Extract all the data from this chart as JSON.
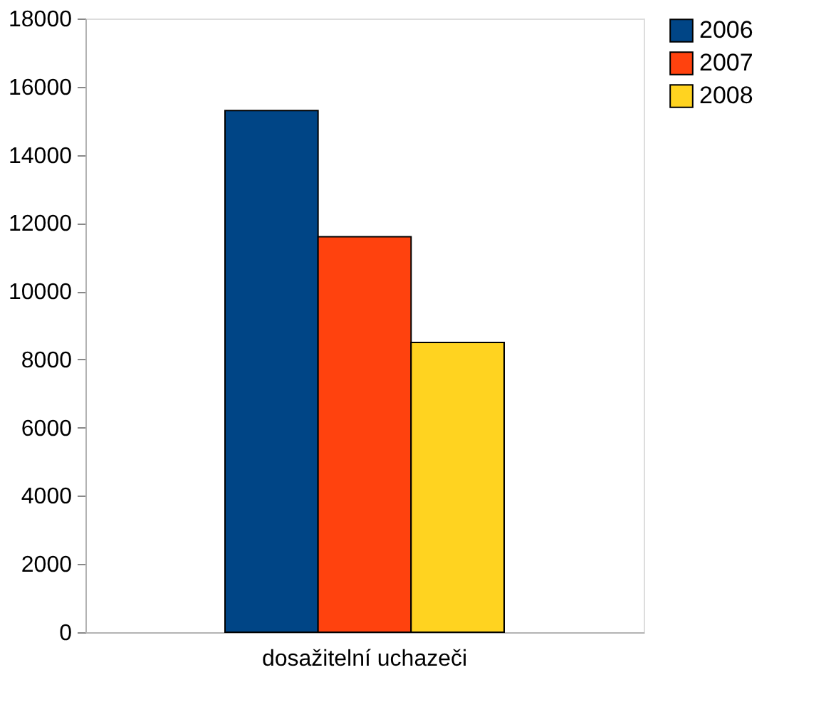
{
  "chart_data": {
    "type": "bar",
    "categories": [
      "dosažitelní uchazeči"
    ],
    "series": [
      {
        "name": "2006",
        "color": "#004586",
        "values": [
          15300
        ]
      },
      {
        "name": "2007",
        "color": "#ff420e",
        "values": [
          11600
        ]
      },
      {
        "name": "2008",
        "color": "#ffd320",
        "values": [
          8500
        ]
      }
    ],
    "ylim": [
      0,
      18000
    ],
    "yticks": [
      0,
      2000,
      4000,
      6000,
      8000,
      10000,
      12000,
      14000,
      16000,
      18000
    ],
    "grid": false,
    "legend": "right"
  }
}
